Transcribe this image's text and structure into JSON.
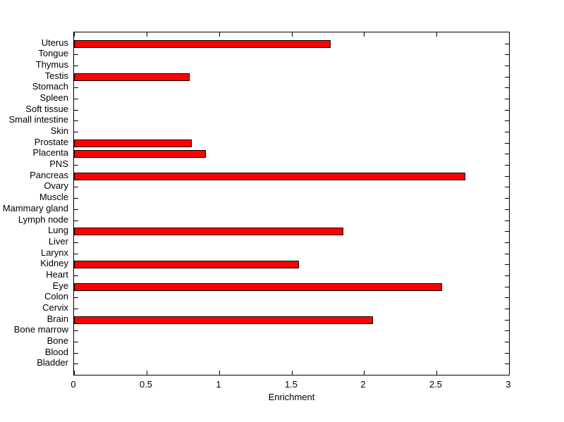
{
  "chart_data": {
    "type": "bar",
    "orientation": "horizontal",
    "title": "",
    "xlabel": "Enrichment",
    "ylabel": "",
    "xlim": [
      0,
      3
    ],
    "xticks": [
      0,
      0.5,
      1,
      1.5,
      2,
      2.5,
      3
    ],
    "xtick_labels": [
      "0",
      "0.5",
      "1",
      "1.5",
      "2",
      "2.5",
      "3"
    ],
    "grid": false,
    "legend": null,
    "box": true,
    "tick_direction": "in",
    "categories": [
      "Uterus",
      "Tongue",
      "Thymus",
      "Testis",
      "Stomach",
      "Spleen",
      "Soft tissue",
      "Small intestine",
      "Skin",
      "Prostate",
      "Placenta",
      "PNS",
      "Pancreas",
      "Ovary",
      "Muscle",
      "Mammary gland",
      "Lymph node",
      "Lung",
      "Liver",
      "Larynx",
      "Kidney",
      "Heart",
      "Eye",
      "Colon",
      "Cervix",
      "Brain",
      "Bone marrow",
      "Bone",
      "Blood",
      "Bladder"
    ],
    "values": [
      1.76,
      0,
      0,
      0.79,
      0,
      0,
      0,
      0,
      0,
      0.8,
      0.9,
      0,
      2.69,
      0,
      0,
      0,
      0,
      1.85,
      0,
      0,
      1.54,
      0,
      2.53,
      0,
      0,
      2.05,
      0,
      0,
      0,
      0
    ],
    "bar_color": "#ff0000",
    "bar_edge_color": "#000000",
    "axis_color": "#000000",
    "background_color": "#ffffff"
  }
}
